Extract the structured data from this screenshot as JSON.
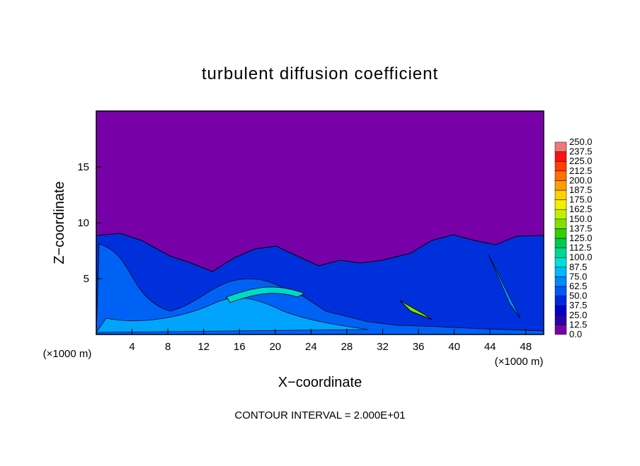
{
  "chart_data": {
    "type": "contour",
    "title": "turbulent diffusion coefficient",
    "xlabel": "X−coordinate",
    "ylabel": "Z−coordinate",
    "x_unit_label": "(×1000 m)",
    "footer": "CONTOUR INTERVAL = 2.000E+01",
    "xlim": [
      0,
      50
    ],
    "ylim": [
      0,
      20
    ],
    "xticks": [
      4,
      8,
      12,
      16,
      20,
      24,
      28,
      32,
      36,
      40,
      44,
      48
    ],
    "yticks": [
      5,
      10,
      15
    ],
    "colorbar": {
      "levels": [
        {
          "value": 0,
          "label": "0.0"
        },
        12.5,
        {
          "value": 25,
          "label": "25.0"
        },
        37.5,
        {
          "value": 50,
          "label": "50.0"
        },
        62.5,
        {
          "value": 75,
          "label": "75.0"
        },
        87.5,
        {
          "value": 100,
          "label": "100.0"
        },
        112.5,
        {
          "value": 125,
          "label": "125.0"
        },
        137.5,
        {
          "value": 150,
          "label": "150.0"
        },
        162.5,
        {
          "value": 175,
          "label": "175.0"
        },
        187.5,
        {
          "value": 200,
          "label": "200.0"
        },
        212.5,
        {
          "value": 225,
          "label": "225.0"
        },
        237.5,
        {
          "value": 250,
          "label": "250.0"
        }
      ],
      "colors": [
        "#7800a8",
        "#2a00a8",
        "#0000c8",
        "#0028e0",
        "#0058f8",
        "#0088ff",
        "#00b8ff",
        "#00e0d8",
        "#00d890",
        "#00c850",
        "#30d000",
        "#80e000",
        "#c0f000",
        "#f0f000",
        "#ffd000",
        "#ffa000",
        "#ff7000",
        "#ff4000",
        "#ff1010",
        "#f07878"
      ]
    }
  }
}
